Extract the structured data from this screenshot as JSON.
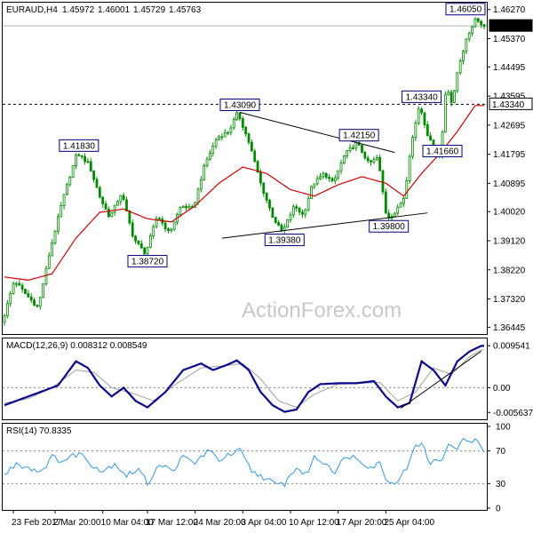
{
  "chart_data": [
    {
      "type": "candlestick",
      "header": {
        "symbol": "EURAUD,H4",
        "open": "1.45972",
        "high": "1.46001",
        "low": "1.45729",
        "close": "1.45763"
      },
      "y_ticks": [
        "1.46270",
        "1.45370",
        "1.44495",
        "1.43595",
        "1.42695",
        "1.41795",
        "1.40895",
        "1.40020",
        "1.39120",
        "1.38220",
        "1.37320",
        "1.36445"
      ],
      "ylim": [
        1.364,
        1.464
      ],
      "last_price": "1.45763",
      "last_price_value": 1.45763,
      "hline": {
        "label": "1.43340",
        "value": 1.4334
      },
      "price_labels": [
        {
          "text": "1.41830",
          "value": 1.4183,
          "bar": 25
        },
        {
          "text": "1.38720",
          "value": 1.3872,
          "bar": 48
        },
        {
          "text": "1.43090",
          "value": 1.4309,
          "bar": 79
        },
        {
          "text": "1.39380",
          "value": 1.3938,
          "bar": 94
        },
        {
          "text": "1.42150",
          "value": 1.4215,
          "bar": 119
        },
        {
          "text": "1.39800",
          "value": 1.398,
          "bar": 129
        },
        {
          "text": "1.43340",
          "value": 1.4334,
          "bar": 140
        },
        {
          "text": "1.41660",
          "value": 1.4166,
          "bar": 147
        },
        {
          "text": "1.46050",
          "value": 1.4605,
          "bar": 159
        }
      ],
      "trendlines": [
        {
          "from": {
            "bar": 79,
            "value": 1.4309
          },
          "to": {
            "bar": 131,
            "value": 1.4185
          }
        },
        {
          "from": {
            "bar": 73,
            "value": 1.392
          },
          "to": {
            "bar": 142,
            "value": 1.3998
          }
        }
      ],
      "anchors": [
        [
          0,
          1.366
        ],
        [
          4,
          1.379
        ],
        [
          8,
          1.3745
        ],
        [
          12,
          1.3705
        ],
        [
          16,
          1.388
        ],
        [
          20,
          1.403
        ],
        [
          25,
          1.4183
        ],
        [
          29,
          1.415
        ],
        [
          33,
          1.404
        ],
        [
          36,
          1.3985
        ],
        [
          40,
          1.406
        ],
        [
          44,
          1.392
        ],
        [
          48,
          1.3872
        ],
        [
          52,
          1.399
        ],
        [
          56,
          1.3935
        ],
        [
          60,
          1.402
        ],
        [
          64,
          1.401
        ],
        [
          68,
          1.415
        ],
        [
          72,
          1.423
        ],
        [
          76,
          1.425
        ],
        [
          79,
          1.4309
        ],
        [
          83,
          1.421
        ],
        [
          87,
          1.408
        ],
        [
          91,
          1.398
        ],
        [
          94,
          1.3938
        ],
        [
          98,
          1.402
        ],
        [
          101,
          1.399
        ],
        [
          104,
          1.4085
        ],
        [
          108,
          1.412
        ],
        [
          111,
          1.409
        ],
        [
          115,
          1.418
        ],
        [
          119,
          1.4215
        ],
        [
          123,
          1.415
        ],
        [
          126,
          1.417
        ],
        [
          129,
          1.398
        ],
        [
          132,
          1.4
        ],
        [
          135,
          1.405
        ],
        [
          137,
          1.42
        ],
        [
          140,
          1.4334
        ],
        [
          143,
          1.423
        ],
        [
          147,
          1.4166
        ],
        [
          149,
          1.44
        ],
        [
          151,
          1.433
        ],
        [
          153,
          1.445
        ],
        [
          156,
          1.454
        ],
        [
          159,
          1.4605
        ],
        [
          161,
          1.4576
        ]
      ],
      "sma_anchors": [
        [
          0,
          1.38
        ],
        [
          8,
          1.379
        ],
        [
          16,
          1.381
        ],
        [
          24,
          1.392
        ],
        [
          32,
          1.4
        ],
        [
          40,
          1.401
        ],
        [
          48,
          1.398
        ],
        [
          56,
          1.397
        ],
        [
          64,
          1.402
        ],
        [
          72,
          1.409
        ],
        [
          80,
          1.414
        ],
        [
          88,
          1.412
        ],
        [
          96,
          1.407
        ],
        [
          104,
          1.405
        ],
        [
          112,
          1.4085
        ],
        [
          120,
          1.411
        ],
        [
          128,
          1.409
        ],
        [
          134,
          1.405
        ],
        [
          140,
          1.412
        ],
        [
          146,
          1.418
        ],
        [
          152,
          1.425
        ],
        [
          158,
          1.433
        ]
      ]
    },
    {
      "type": "line",
      "header": "MACD(12,26,9) 0.008312 0.008549",
      "y_ticks": [
        "0.009541",
        "0.00",
        "-0.005637"
      ],
      "ylim": [
        -0.0068,
        0.0108
      ],
      "signal_ticks": [
        {
          "label": "0.009541",
          "value": 0.009541
        },
        {
          "label": "0.00",
          "value": 0.0
        },
        {
          "label": "-0.005637",
          "value": -0.005637
        }
      ],
      "macd_anchors": [
        [
          0,
          -0.004
        ],
        [
          6,
          -0.0025
        ],
        [
          12,
          -0.001
        ],
        [
          18,
          0.0005
        ],
        [
          24,
          0.006
        ],
        [
          28,
          0.0045
        ],
        [
          32,
          0.0005
        ],
        [
          36,
          -0.002
        ],
        [
          40,
          0.0
        ],
        [
          44,
          -0.003
        ],
        [
          48,
          -0.0045
        ],
        [
          54,
          -0.001
        ],
        [
          60,
          0.004
        ],
        [
          66,
          0.0055
        ],
        [
          70,
          0.004
        ],
        [
          74,
          0.005
        ],
        [
          78,
          0.0062
        ],
        [
          82,
          0.004
        ],
        [
          86,
          -0.001
        ],
        [
          90,
          -0.004
        ],
        [
          94,
          -0.0055
        ],
        [
          98,
          -0.005
        ],
        [
          102,
          -0.001
        ],
        [
          106,
          0.0008
        ],
        [
          112,
          0.001
        ],
        [
          118,
          0.001
        ],
        [
          124,
          0.0015
        ],
        [
          128,
          -0.002
        ],
        [
          132,
          -0.0045
        ],
        [
          136,
          -0.0035
        ],
        [
          140,
          0.006
        ],
        [
          144,
          0.004
        ],
        [
          148,
          0.0005
        ],
        [
          152,
          0.006
        ],
        [
          156,
          0.0082
        ],
        [
          160,
          0.0095
        ]
      ],
      "signal_anchors": [
        [
          0,
          -0.0035
        ],
        [
          8,
          -0.0025
        ],
        [
          16,
          0.0
        ],
        [
          24,
          0.004
        ],
        [
          30,
          0.0035
        ],
        [
          36,
          0.0
        ],
        [
          44,
          -0.0015
        ],
        [
          50,
          -0.003
        ],
        [
          58,
          0.001
        ],
        [
          66,
          0.0045
        ],
        [
          74,
          0.005
        ],
        [
          80,
          0.0055
        ],
        [
          86,
          0.002
        ],
        [
          92,
          -0.003
        ],
        [
          98,
          -0.0045
        ],
        [
          104,
          -0.0015
        ],
        [
          112,
          0.0008
        ],
        [
          120,
          0.001
        ],
        [
          126,
          0.0012
        ],
        [
          132,
          -0.003
        ],
        [
          138,
          -0.001
        ],
        [
          144,
          0.0045
        ],
        [
          150,
          0.003
        ],
        [
          156,
          0.007
        ],
        [
          160,
          0.0086
        ]
      ],
      "trendline": {
        "from": {
          "bar": 133,
          "value": -0.0047
        },
        "to": {
          "bar": 160,
          "value": 0.0083
        }
      }
    },
    {
      "type": "line",
      "header": "RSI(14) 70.8335",
      "y_ticks": [
        "100",
        "70",
        "30",
        "0"
      ],
      "ylim": [
        0,
        100
      ],
      "levels": [
        70,
        30
      ],
      "rsi_anchors": [
        [
          0,
          40
        ],
        [
          4,
          55
        ],
        [
          8,
          50
        ],
        [
          12,
          45
        ],
        [
          16,
          62
        ],
        [
          20,
          58
        ],
        [
          25,
          68
        ],
        [
          29,
          55
        ],
        [
          33,
          45
        ],
        [
          37,
          55
        ],
        [
          41,
          40
        ],
        [
          45,
          48
        ],
        [
          48,
          30
        ],
        [
          52,
          55
        ],
        [
          56,
          45
        ],
        [
          60,
          62
        ],
        [
          64,
          55
        ],
        [
          68,
          70
        ],
        [
          72,
          60
        ],
        [
          76,
          65
        ],
        [
          79,
          70
        ],
        [
          83,
          45
        ],
        [
          87,
          38
        ],
        [
          91,
          28
        ],
        [
          94,
          30
        ],
        [
          98,
          50
        ],
        [
          101,
          40
        ],
        [
          104,
          62
        ],
        [
          108,
          55
        ],
        [
          111,
          45
        ],
        [
          115,
          65
        ],
        [
          119,
          60
        ],
        [
          123,
          50
        ],
        [
          126,
          55
        ],
        [
          129,
          30
        ],
        [
          132,
          35
        ],
        [
          135,
          48
        ],
        [
          137,
          72
        ],
        [
          140,
          78
        ],
        [
          143,
          55
        ],
        [
          147,
          60
        ],
        [
          149,
          82
        ],
        [
          151,
          70
        ],
        [
          153,
          80
        ],
        [
          156,
          85
        ],
        [
          159,
          80
        ],
        [
          161,
          70
        ]
      ]
    }
  ],
  "x_labels": [
    {
      "text": "23 Feb 2017",
      "bar": 3
    },
    {
      "text": "2 Mar 20:00",
      "bar": 17
    },
    {
      "text": "10 Mar 04:00",
      "bar": 33
    },
    {
      "text": "17 Mar 12:00",
      "bar": 48
    },
    {
      "text": "24 Mar 20:00",
      "bar": 64
    },
    {
      "text": "3 Apr 04:00",
      "bar": 80
    },
    {
      "text": "10 Apr 12:00",
      "bar": 96
    },
    {
      "text": "17 Apr 20:00",
      "bar": 112
    },
    {
      "text": "25 Apr 04:00",
      "bar": 128
    }
  ],
  "watermark": "ActionForex.com",
  "colors": {
    "candle": "#008a00",
    "sma": "#cc0000",
    "macd": "#0a0a8c",
    "signal": "#a0a0a0",
    "rsi": "#3399dd",
    "label_border": "#000080",
    "label_bg": "#ffffff",
    "grid_dash": "#808080"
  }
}
